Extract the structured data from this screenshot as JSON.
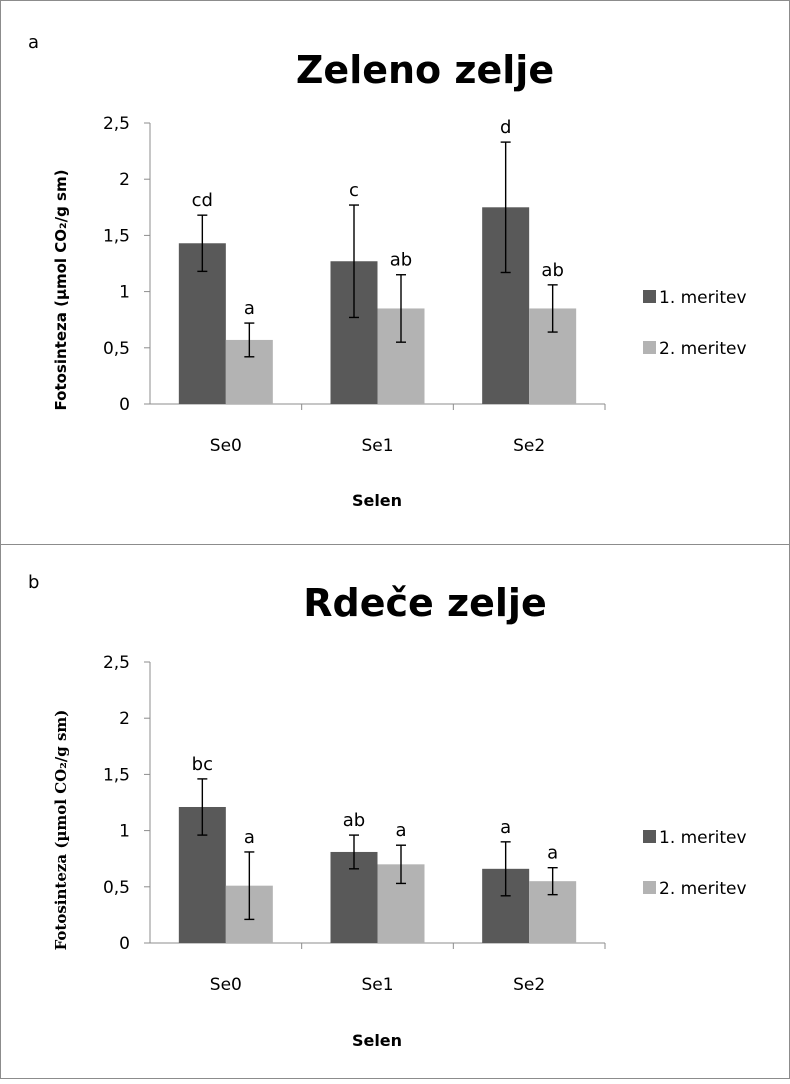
{
  "chart_data": [
    {
      "type": "bar",
      "panel": "a",
      "title": "Zeleno zelje",
      "xlabel": "Selen",
      "ylabel": "Fotosinteza (µmol CO₂/g sm)",
      "ylim": [
        0,
        2.5
      ],
      "yticks": [
        "0",
        "0,5",
        "1",
        "1,5",
        "2",
        "2,5"
      ],
      "categories": [
        "Se0",
        "Se1",
        "Se2"
      ],
      "legend_position": "right",
      "grid": false,
      "series": [
        {
          "name": "1. meritev",
          "color": "#595959",
          "values": [
            1.43,
            1.27,
            1.75
          ],
          "errors": [
            0.25,
            0.5,
            0.58
          ],
          "labels": [
            "cd",
            "c",
            "d"
          ]
        },
        {
          "name": "2. meritev",
          "color": "#b3b3b3",
          "values": [
            0.57,
            0.85,
            0.85
          ],
          "errors": [
            0.15,
            0.3,
            0.21
          ],
          "labels": [
            "a",
            "ab",
            "ab"
          ]
        }
      ]
    },
    {
      "type": "bar",
      "panel": "b",
      "title": "Rdeče  zelje",
      "xlabel": "Selen",
      "ylabel": "Fotosinteza (µmol CO₂/g sm)",
      "ylim": [
        0,
        2.5
      ],
      "yticks": [
        "0",
        "0,5",
        "1",
        "1,5",
        "2",
        "2,5"
      ],
      "categories": [
        "Se0",
        "Se1",
        "Se2"
      ],
      "legend_position": "right",
      "grid": false,
      "series": [
        {
          "name": "1. meritev",
          "color": "#595959",
          "values": [
            1.21,
            0.81,
            0.66
          ],
          "errors": [
            0.25,
            0.15,
            0.24
          ],
          "labels": [
            "bc",
            "ab",
            "a"
          ]
        },
        {
          "name": "2. meritev",
          "color": "#b3b3b3",
          "values": [
            0.51,
            0.7,
            0.55
          ],
          "errors": [
            0.3,
            0.17,
            0.12
          ],
          "labels": [
            "a",
            "a",
            "a"
          ]
        }
      ]
    }
  ]
}
